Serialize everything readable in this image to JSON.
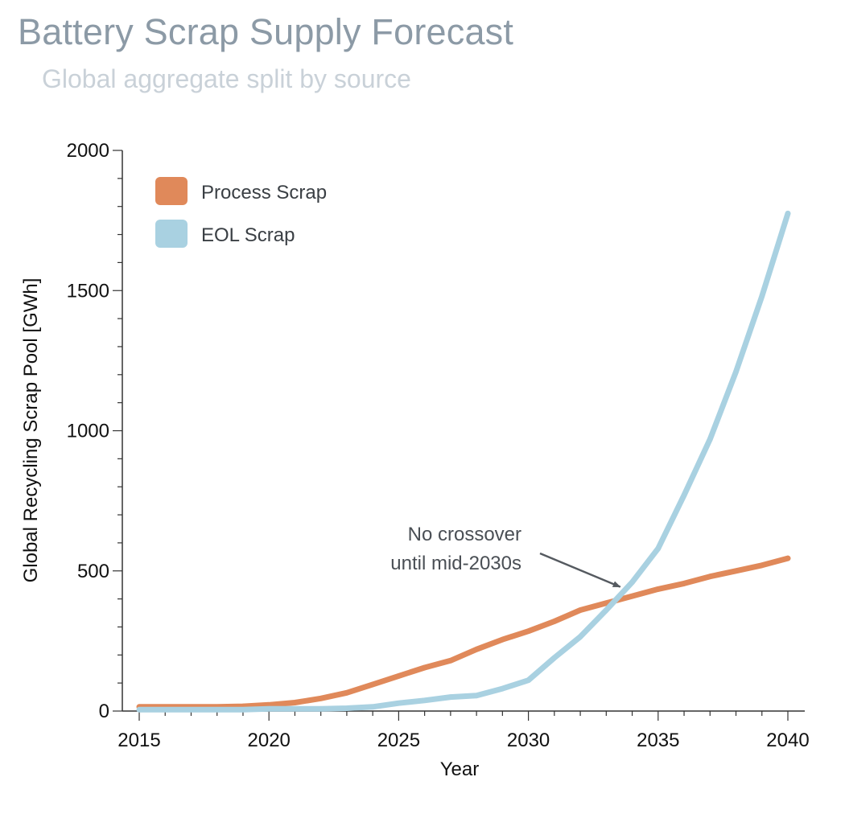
{
  "header": {
    "title": "Battery Scrap Supply Forecast",
    "subtitle": "Global aggregate split by source"
  },
  "chart_data": {
    "type": "line",
    "title": "Battery Scrap Supply Forecast",
    "subtitle": "Global aggregate split by source",
    "xlabel": "Year",
    "ylabel": "Global Recycling Scrap Pool [GWh]",
    "xlim": [
      2015,
      2040
    ],
    "ylim": [
      0,
      2000
    ],
    "xticks": [
      2015,
      2020,
      2025,
      2030,
      2035,
      2040
    ],
    "yticks": [
      0,
      500,
      1000,
      1500,
      2000
    ],
    "grid": false,
    "legend_position": "top-left",
    "x": [
      2015,
      2016,
      2017,
      2018,
      2019,
      2020,
      2021,
      2022,
      2023,
      2024,
      2025,
      2026,
      2027,
      2028,
      2029,
      2030,
      2031,
      2032,
      2033,
      2034,
      2035,
      2036,
      2037,
      2038,
      2039,
      2040
    ],
    "series": [
      {
        "name": "Process Scrap",
        "color": "#e0895a",
        "values": [
          15,
          15,
          15,
          15,
          17,
          22,
          30,
          45,
          65,
          95,
          125,
          155,
          180,
          220,
          255,
          285,
          320,
          360,
          385,
          410,
          435,
          455,
          480,
          500,
          520,
          545
        ]
      },
      {
        "name": "EOL Scrap",
        "color": "#a9d1e1",
        "values": [
          5,
          5,
          5,
          5,
          5,
          8,
          8,
          8,
          10,
          15,
          28,
          38,
          50,
          55,
          80,
          110,
          190,
          265,
          360,
          460,
          580,
          770,
          970,
          1210,
          1480,
          1775
        ]
      }
    ],
    "annotations": [
      {
        "text_lines": [
          "No crossover",
          "until mid-2030s"
        ],
        "arrow_to": [
          2033.6,
          420
        ]
      }
    ]
  }
}
